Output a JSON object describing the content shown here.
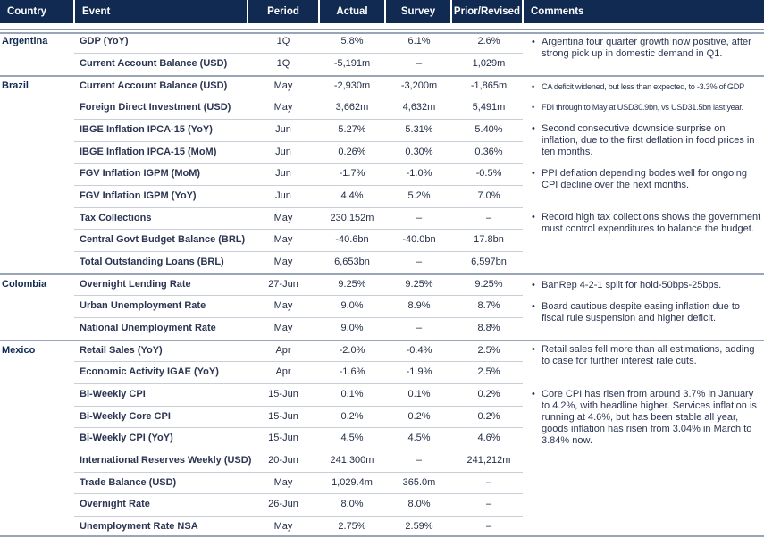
{
  "headers": {
    "country": "Country",
    "event": "Event",
    "period": "Period",
    "actual": "Actual",
    "survey": "Survey",
    "prior": "Prior/Revised",
    "comments": "Comments"
  },
  "rows": [
    {
      "country": "Argentina",
      "event": "GDP (YoY)",
      "period": "1Q",
      "actual": "5.8%",
      "survey": "6.1%",
      "prior": "2.6%"
    },
    {
      "country": "",
      "event": "Current Account Balance (USD)",
      "period": "1Q",
      "actual": "-5,191m",
      "survey": "–",
      "prior": "1,029m"
    },
    {
      "country": "Brazil",
      "event": "Current Account Balance (USD)",
      "period": "May",
      "actual": "-2,930m",
      "survey": "-3,200m",
      "prior": "-1,865m"
    },
    {
      "country": "",
      "event": "Foreign Direct Investment (USD)",
      "period": "May",
      "actual": "3,662m",
      "survey": "4,632m",
      "prior": "5,491m"
    },
    {
      "country": "",
      "event": "IBGE Inflation IPCA-15 (YoY)",
      "period": "Jun",
      "actual": "5.27%",
      "survey": "5.31%",
      "prior": "5.40%"
    },
    {
      "country": "",
      "event": "IBGE Inflation IPCA-15 (MoM)",
      "period": "Jun",
      "actual": "0.26%",
      "survey": "0.30%",
      "prior": "0.36%"
    },
    {
      "country": "",
      "event": "FGV Inflation IGPM (MoM)",
      "period": "Jun",
      "actual": "-1.7%",
      "survey": "-1.0%",
      "prior": "-0.5%"
    },
    {
      "country": "",
      "event": "FGV Inflation IGPM (YoY)",
      "period": "Jun",
      "actual": "4.4%",
      "survey": "5.2%",
      "prior": "7.0%"
    },
    {
      "country": "",
      "event": "Tax Collections",
      "period": "May",
      "actual": "230,152m",
      "survey": "–",
      "prior": "–"
    },
    {
      "country": "",
      "event": "Central Govt Budget Balance (BRL)",
      "period": "May",
      "actual": "-40.6bn",
      "survey": "-40.0bn",
      "prior": "17.8bn"
    },
    {
      "country": "",
      "event": "Total Outstanding Loans (BRL)",
      "period": "May",
      "actual": "6,653bn",
      "survey": "–",
      "prior": "6,597bn"
    },
    {
      "country": "Colombia",
      "event": "Overnight Lending Rate",
      "period": "27-Jun",
      "actual": "9.25%",
      "survey": "9.25%",
      "prior": "9.25%"
    },
    {
      "country": "",
      "event": "Urban Unemployment Rate",
      "period": "May",
      "actual": "9.0%",
      "survey": "8.9%",
      "prior": "8.7%"
    },
    {
      "country": "",
      "event": "National Unemployment Rate",
      "period": "May",
      "actual": "9.0%",
      "survey": "–",
      "prior": "8.8%"
    },
    {
      "country": "Mexico",
      "event": "Retail Sales (YoY)",
      "period": "Apr",
      "actual": "-2.0%",
      "survey": "-0.4%",
      "prior": "2.5%"
    },
    {
      "country": "",
      "event": "Economic Activity IGAE (YoY)",
      "period": "Apr",
      "actual": "-1.6%",
      "survey": "-1.9%",
      "prior": "2.5%"
    },
    {
      "country": "",
      "event": "Bi-Weekly CPI",
      "period": "15-Jun",
      "actual": "0.1%",
      "survey": "0.1%",
      "prior": "0.2%"
    },
    {
      "country": "",
      "event": "Bi-Weekly Core CPI",
      "period": "15-Jun",
      "actual": "0.2%",
      "survey": "0.2%",
      "prior": "0.2%"
    },
    {
      "country": "",
      "event": "Bi-Weekly CPI (YoY)",
      "period": "15-Jun",
      "actual": "4.5%",
      "survey": "4.5%",
      "prior": "4.6%"
    },
    {
      "country": "",
      "event": "International Reserves Weekly (USD)",
      "period": "20-Jun",
      "actual": "241,300m",
      "survey": "–",
      "prior": "241,212m"
    },
    {
      "country": "",
      "event": "Trade Balance (USD)",
      "period": "May",
      "actual": "1,029.4m",
      "survey": "365.0m",
      "prior": "–"
    },
    {
      "country": "",
      "event": "Overnight Rate",
      "period": "26-Jun",
      "actual": "8.0%",
      "survey": "8.0%",
      "prior": "–"
    },
    {
      "country": "",
      "event": "Unemployment Rate NSA",
      "period": "May",
      "actual": "2.75%",
      "survey": "2.59%",
      "prior": "–"
    }
  ],
  "comments": [
    {
      "text": "Argentina four quarter growth now positive, after strong pick up in domestic demand in Q1."
    },
    {
      "text": "CA deficit widened, but less than expected, to -3.3% of GDP"
    },
    {
      "text": "FDI through to May at USD30.9bn, vs USD31.5bn last year."
    },
    {
      "text": "Second consecutive downside surprise on inflation, due to the first deflation in food prices in ten months."
    },
    {
      "text": "PPI deflation depending bodes well for ongoing CPI decline over the next months."
    },
    {
      "text": "Record high tax collections shows the government must control expenditures to balance the budget."
    },
    {
      "text": "BanRep 4-2-1 split for hold-50bps-25bps."
    },
    {
      "text": "Board cautious despite easing inflation due to fiscal rule suspension and higher deficit."
    },
    {
      "text": "Retail sales fell more than all estimations, adding to case for further interest rate cuts."
    },
    {
      "text": "Core CPI has risen from around 3.7% in January  to 4.2%, with headline higher. Services inflation is running  at 4.6%, but has been stable all year, goods inflation has risen from 3.04% in March to 3.84% now."
    }
  ],
  "bullet": "•"
}
